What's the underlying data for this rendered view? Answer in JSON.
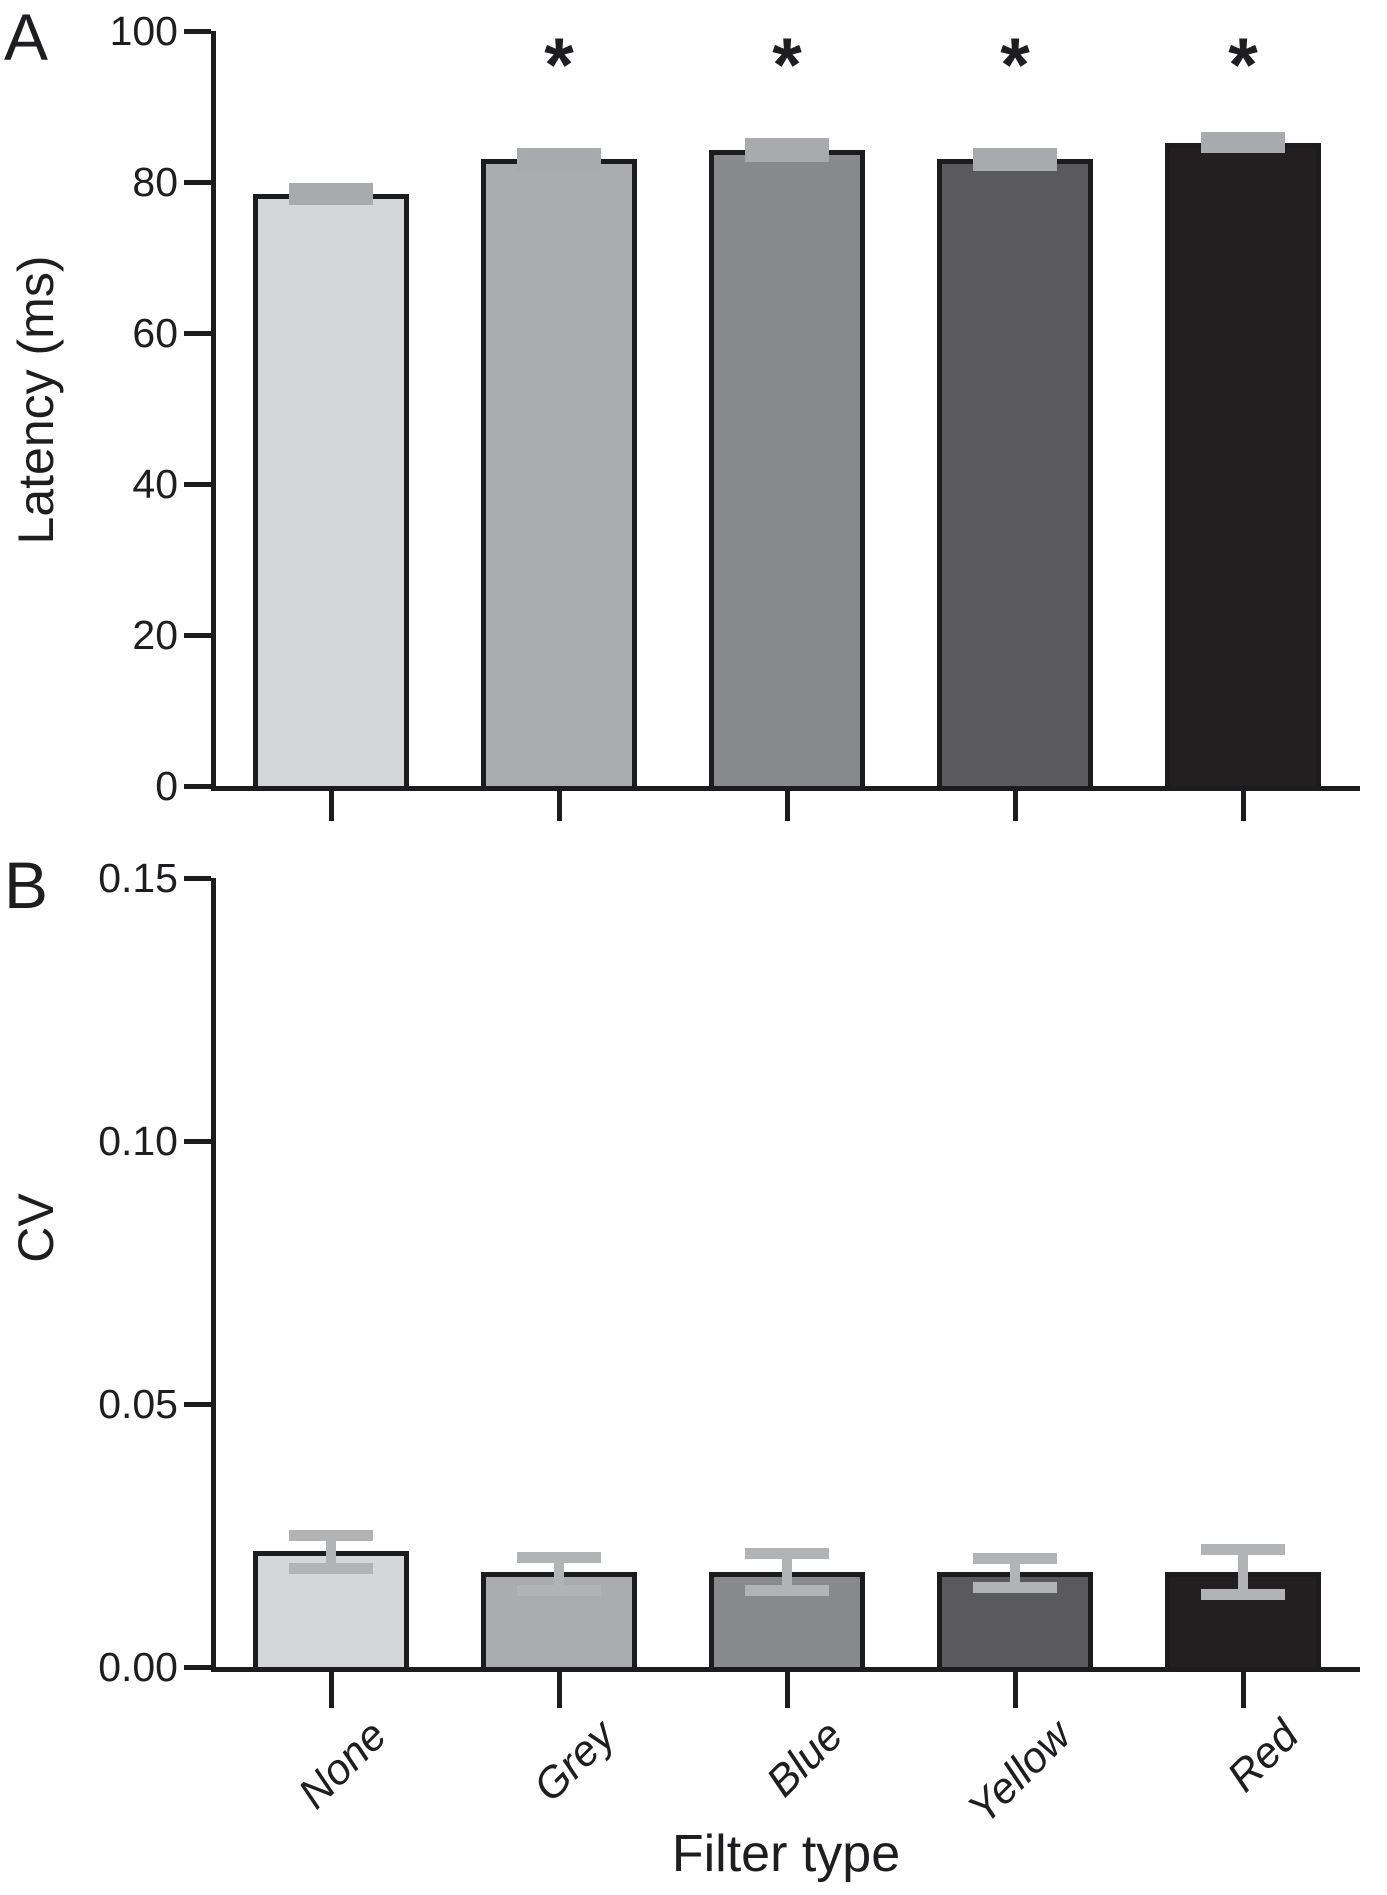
{
  "figure": {
    "background": "#ffffff",
    "panels": [
      {
        "letter": "A"
      },
      {
        "letter": "B"
      }
    ]
  },
  "chart_data": [
    {
      "type": "bar",
      "panel": "A",
      "ylabel": "Latency (ms)",
      "xlabel": "",
      "categories": [
        "None",
        "Grey",
        "Blue",
        "Yellow",
        "Red"
      ],
      "values": [
        78.4,
        83.0,
        84.2,
        83.0,
        85.2
      ],
      "errors_up": [
        1.5,
        1.5,
        1.6,
        1.5,
        1.4
      ],
      "errors_down": [
        1.5,
        1.5,
        1.6,
        1.5,
        1.4
      ],
      "significance": [
        "",
        "*",
        "*",
        "*",
        "*"
      ],
      "ylim": [
        0,
        100
      ],
      "yticks": [
        {
          "v": 0,
          "label": "0"
        },
        {
          "v": 20,
          "label": "20"
        },
        {
          "v": 40,
          "label": "40"
        },
        {
          "v": 60,
          "label": "60"
        },
        {
          "v": 80,
          "label": "80"
        },
        {
          "v": 100,
          "label": "100"
        }
      ],
      "grid": false,
      "legend": false,
      "bar_colors": [
        "#d5d6d8",
        "#aaacaf",
        "#87898c",
        "#5a5a5c",
        "#231f20"
      ],
      "bar_stroke": "#1c1c1e",
      "error_color": "#a8aaad",
      "error_style": "block"
    },
    {
      "type": "bar",
      "panel": "B",
      "ylabel": "CV",
      "xlabel": "Filter type",
      "categories": [
        "None",
        "Grey",
        "Blue",
        "Yellow",
        "Red"
      ],
      "values": [
        0.022,
        0.018,
        0.018,
        0.018,
        0.018
      ],
      "errors_up": [
        0.003,
        0.0028,
        0.0035,
        0.0027,
        0.0044
      ],
      "errors_down": [
        0.0032,
        0.0035,
        0.0035,
        0.0028,
        0.0042
      ],
      "significance": [
        "",
        "",
        "",
        "",
        ""
      ],
      "ylim": [
        0,
        0.15
      ],
      "yticks": [
        {
          "v": 0,
          "label": "0.00"
        },
        {
          "v": 0.05,
          "label": "0.05"
        },
        {
          "v": 0.1,
          "label": "0.10"
        },
        {
          "v": 0.15,
          "label": "0.15"
        }
      ],
      "grid": false,
      "legend": false,
      "bar_colors": [
        "#d5d6d8",
        "#aaacaf",
        "#87898c",
        "#5a5a5c",
        "#231f20"
      ],
      "bar_stroke": "#1c1c1e",
      "error_color": "#b1b3b5",
      "error_style": "ibeam"
    }
  ]
}
